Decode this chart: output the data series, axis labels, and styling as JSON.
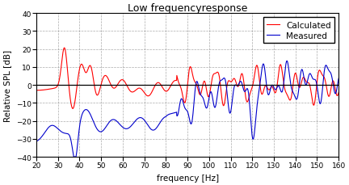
{
  "title": "Low frequencyresponse",
  "xlabel": "frequency [Hz]",
  "ylabel": "Relative SPL [dB]",
  "xlim": [
    20,
    160
  ],
  "ylim": [
    -40,
    40
  ],
  "xticks": [
    20,
    30,
    40,
    50,
    60,
    70,
    80,
    90,
    100,
    110,
    120,
    130,
    140,
    150,
    160
  ],
  "yticks": [
    -40,
    -30,
    -20,
    -10,
    0,
    10,
    20,
    30,
    40
  ],
  "calc_color": "#ff0000",
  "meas_color": "#0000cc",
  "legend_calc": "Calculated",
  "legend_meas": "Measured",
  "bg_color": "#ffffff",
  "grid_color": "#888888",
  "linewidth": 0.8,
  "title_fontsize": 9,
  "axis_fontsize": 7.5,
  "tick_fontsize": 6.5,
  "legend_fontsize": 7.5
}
